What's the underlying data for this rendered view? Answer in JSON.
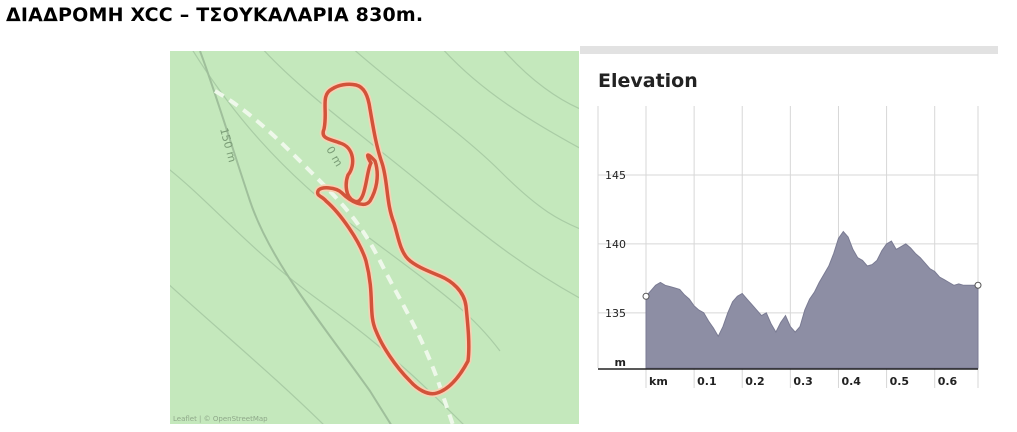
{
  "page": {
    "title": "ΔΙΑΔΡΟΜΗ XCC – ΤΣΟΥΚΑΛΑΡΙΑ 830m."
  },
  "map": {
    "contour_labels": [
      "150 m",
      "0 m"
    ],
    "attribution": "Leaflet | © OpenStreetMap",
    "colors": {
      "land": "#c4e8bc",
      "route": "#d2533a",
      "route_outline": "#f4c9a8",
      "path": "#e8f5e3",
      "contour": "#a8cca4",
      "track": "#9fbf9b"
    }
  },
  "elevation": {
    "title": "Elevation",
    "colors": {
      "area": "#8d8ea4",
      "area_line": "#7a7b93",
      "grid": "#d7d7d7"
    }
  },
  "chart_data": {
    "type": "area",
    "title": "Elevation",
    "xlabel": "km",
    "ylabel": "m",
    "xlim": [
      0,
      0.69
    ],
    "ylim": [
      131,
      150
    ],
    "xticks": [
      0.1,
      0.2,
      0.3,
      0.4,
      0.5,
      0.6
    ],
    "xtick_labels": [
      "0.1",
      "0.2",
      "0.3",
      "0.4",
      "0.5",
      "0.6"
    ],
    "yticks": [
      135,
      140,
      145
    ],
    "ytick_labels": [
      "135",
      "140",
      "145"
    ],
    "grid": true,
    "series": [
      {
        "x": [
          0,
          0.01,
          0.02,
          0.03,
          0.04,
          0.05,
          0.06,
          0.07,
          0.08,
          0.09,
          0.1,
          0.11,
          0.12,
          0.13,
          0.14,
          0.15,
          0.16,
          0.17,
          0.18,
          0.19,
          0.2,
          0.21,
          0.22,
          0.23,
          0.24,
          0.25,
          0.26,
          0.27,
          0.28,
          0.29,
          0.3,
          0.31,
          0.32,
          0.33,
          0.34,
          0.35,
          0.36,
          0.37,
          0.38,
          0.39,
          0.4,
          0.41,
          0.42,
          0.43,
          0.44,
          0.45,
          0.46,
          0.47,
          0.48,
          0.49,
          0.5,
          0.51,
          0.52,
          0.53,
          0.54,
          0.55,
          0.56,
          0.57,
          0.58,
          0.59,
          0.6,
          0.61,
          0.62,
          0.63,
          0.64,
          0.65,
          0.66,
          0.67,
          0.68,
          0.69
        ],
        "y": [
          136.2,
          136.6,
          137.0,
          137.2,
          137.0,
          136.9,
          136.8,
          136.7,
          136.3,
          136.0,
          135.5,
          135.2,
          135.0,
          134.4,
          133.9,
          133.3,
          134.0,
          135.0,
          135.8,
          136.2,
          136.4,
          136.0,
          135.6,
          135.2,
          134.8,
          135.0,
          134.2,
          133.6,
          134.3,
          134.8,
          134.0,
          133.6,
          134.0,
          135.2,
          136.0,
          136.5,
          137.2,
          137.8,
          138.4,
          139.3,
          140.4,
          140.9,
          140.5,
          139.6,
          139.0,
          138.8,
          138.4,
          138.5,
          138.8,
          139.5,
          140.0,
          140.2,
          139.6,
          139.8,
          140.0,
          139.7,
          139.3,
          139.0,
          138.6,
          138.2,
          138.0,
          137.6,
          137.4,
          137.2,
          137.0,
          137.1,
          137.0,
          137.0,
          137.0,
          137.0
        ]
      }
    ]
  }
}
